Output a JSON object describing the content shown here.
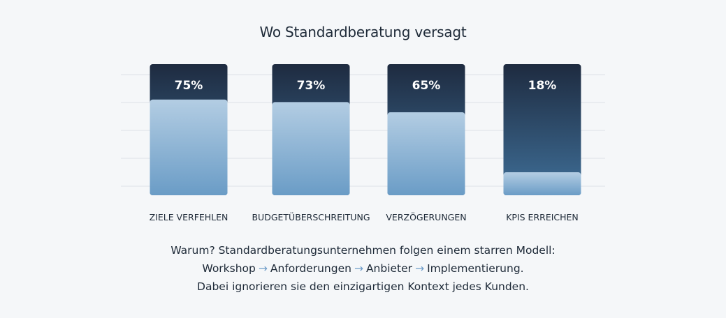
{
  "chart_data": {
    "type": "bar",
    "title": "Wo Standardberatung versagt",
    "categories": [
      "ZIELE VERFEHLEN",
      "BUDGETÜBERSCHREITUNG",
      "VERZÖGERUNGEN",
      "KPIS ERREICHEN"
    ],
    "values": [
      75,
      73,
      65,
      18
    ],
    "value_labels": [
      "75%",
      "73%",
      "65%",
      "18%"
    ],
    "ylim": [
      0,
      100
    ],
    "unit": "%",
    "grid": true,
    "colors": {
      "bar_top": "#1e2b40",
      "bar_bottom": "#3f6f98",
      "fill_top": "#b3cde3",
      "fill_bottom": "#6a9cc6",
      "grid": "#dde1e6"
    }
  },
  "footer": {
    "line1": "Warum? Standardberatungsunternehmen folgen einem starren Modell:",
    "steps": [
      "Workshop",
      "Anforderungen",
      "Anbieter",
      "Implementierung."
    ],
    "arrow": "→",
    "line3": "Dabei ignorieren sie den einzigartigen Kontext jedes Kunden."
  }
}
